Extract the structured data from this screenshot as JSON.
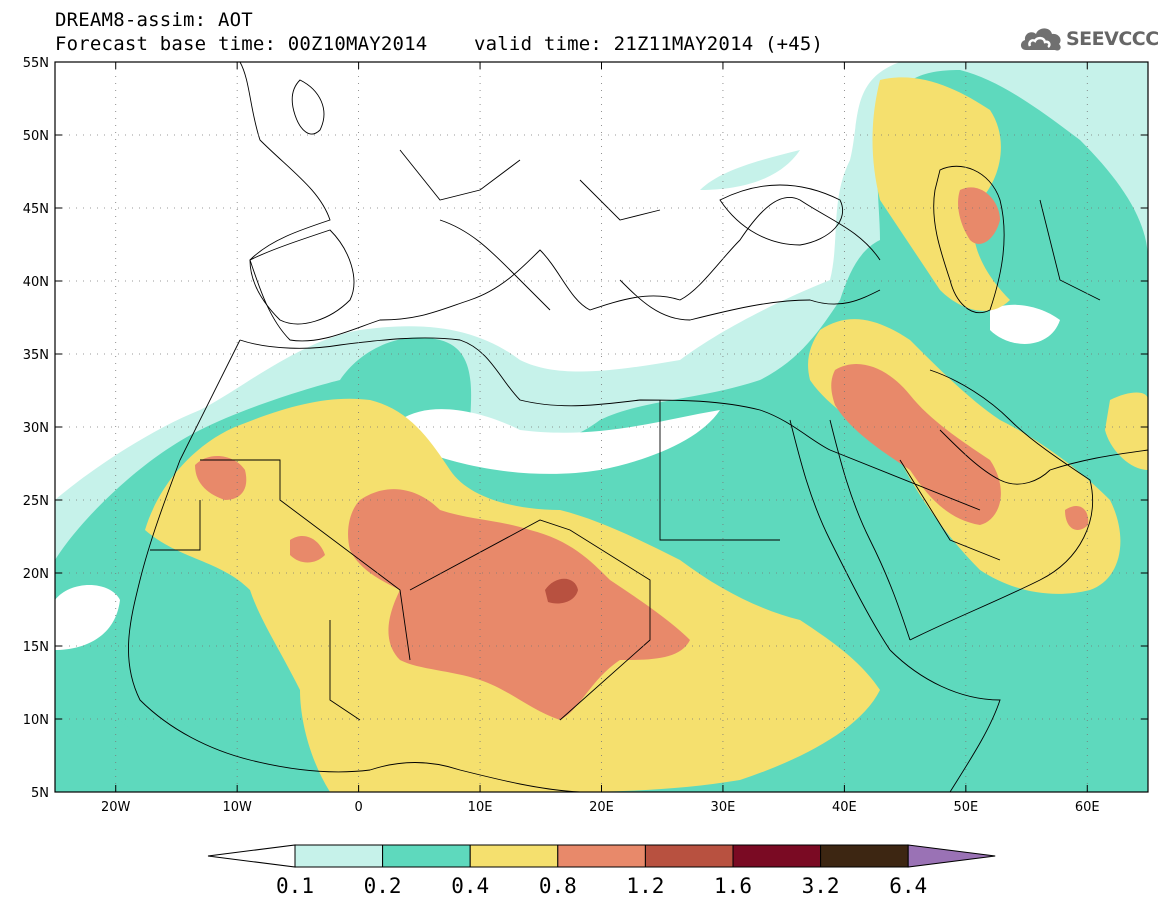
{
  "title": {
    "line1": "DREAM8-assim: AOT",
    "line2_base": "Forecast base time: 00Z10MAY2014",
    "line2_valid": "valid time: 21Z11MAY2014 (+45)"
  },
  "logo": {
    "text": "SEEVCCC",
    "icon": "cloud-icon"
  },
  "map": {
    "lon_range": [
      -25,
      65
    ],
    "lat_range": [
      5,
      55
    ],
    "lon_ticks": [
      {
        "value": -20,
        "label": "20W"
      },
      {
        "value": -10,
        "label": "10W"
      },
      {
        "value": 0,
        "label": "0"
      },
      {
        "value": 10,
        "label": "10E"
      },
      {
        "value": 20,
        "label": "20E"
      },
      {
        "value": 30,
        "label": "30E"
      },
      {
        "value": 40,
        "label": "40E"
      },
      {
        "value": 50,
        "label": "50E"
      },
      {
        "value": 60,
        "label": "60E"
      }
    ],
    "lat_ticks": [
      {
        "value": 55,
        "label": "55N"
      },
      {
        "value": 50,
        "label": "50N"
      },
      {
        "value": 45,
        "label": "45N"
      },
      {
        "value": 40,
        "label": "40N"
      },
      {
        "value": 35,
        "label": "35N"
      },
      {
        "value": 30,
        "label": "30N"
      },
      {
        "value": 25,
        "label": "25N"
      },
      {
        "value": 20,
        "label": "20N"
      },
      {
        "value": 15,
        "label": "15N"
      },
      {
        "value": 10,
        "label": "10N"
      },
      {
        "value": 5,
        "label": "5N"
      }
    ],
    "grid": true
  },
  "colorbar": {
    "bins": [
      {
        "color": "#c6f2ea",
        "from": 0.1,
        "to": 0.2
      },
      {
        "color": "#5ed9bd",
        "from": 0.2,
        "to": 0.4
      },
      {
        "color": "#f5e06e",
        "from": 0.4,
        "to": 0.8
      },
      {
        "color": "#e8896a",
        "from": 0.8,
        "to": 1.2
      },
      {
        "color": "#b85140",
        "from": 1.2,
        "to": 1.6
      },
      {
        "color": "#7a0a23",
        "from": 1.6,
        "to": 3.2
      },
      {
        "color": "#3d2612",
        "from": 3.2,
        "to": 6.4
      }
    ],
    "under_color": "#ffffff",
    "over_color": "#9a72b5",
    "labels": [
      "0.1",
      "0.2",
      "0.4",
      "0.8",
      "1.2",
      "1.6",
      "3.2",
      "6.4"
    ]
  }
}
